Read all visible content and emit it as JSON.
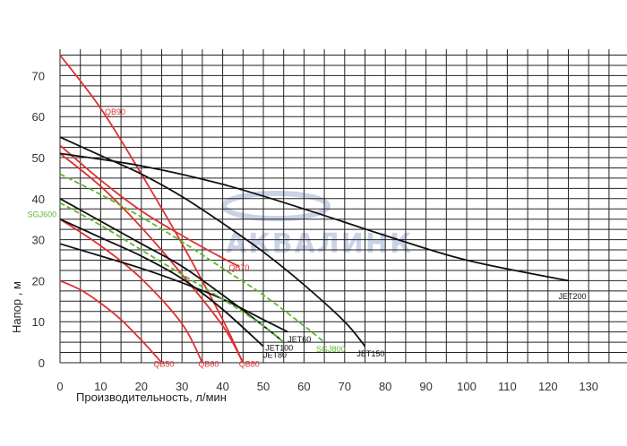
{
  "chart_data": {
    "type": "line",
    "title": "",
    "xlabel": "Производительность, л/мин",
    "ylabel": "Напор , м",
    "xlim": [
      0,
      140
    ],
    "ylim": [
      0,
      78
    ],
    "x_ticks": [
      0,
      10,
      20,
      30,
      40,
      50,
      60,
      70,
      80,
      90,
      100,
      110,
      120,
      130
    ],
    "y_ticks": [
      0,
      10,
      20,
      30,
      40,
      50,
      60,
      70
    ],
    "grid": true,
    "watermark": "АКВАЛИНК",
    "colors": {
      "black": "#111111",
      "red": "#e03030",
      "green": "#5cb82a",
      "grid": "#222222"
    },
    "series": [
      {
        "name": "QB50",
        "color": "red",
        "x": [
          0,
          5,
          10,
          15,
          20,
          25
        ],
        "y": [
          20,
          17.8,
          14.5,
          10.5,
          5.5,
          0
        ]
      },
      {
        "name": "QB60",
        "color": "red",
        "x": [
          0,
          10,
          20,
          30,
          35
        ],
        "y": [
          35,
          28.5,
          20.5,
          9.5,
          0
        ]
      },
      {
        "name": "QB70",
        "color": "red",
        "x": [
          0,
          10,
          20,
          30,
          40,
          44
        ],
        "y": [
          53,
          44.5,
          37,
          31,
          25.5,
          23.5
        ]
      },
      {
        "name": "QB80",
        "color": "red",
        "x": [
          0,
          10,
          20,
          30,
          40,
          45
        ],
        "y": [
          51,
          43,
          33,
          21.5,
          9,
          0
        ]
      },
      {
        "name": "QB90",
        "color": "red",
        "x": [
          0,
          10,
          20,
          30,
          40,
          45
        ],
        "y": [
          75,
          62,
          46,
          29,
          10.5,
          0
        ]
      },
      {
        "name": "JET80",
        "color": "black",
        "x": [
          0,
          10,
          20,
          30,
          40,
          50
        ],
        "y": [
          35,
          30.5,
          26,
          20.5,
          13,
          4
        ]
      },
      {
        "name": "JET100",
        "color": "black",
        "x": [
          0,
          10,
          20,
          30,
          40,
          50,
          55
        ],
        "y": [
          40,
          34.5,
          29,
          23.5,
          16.5,
          9,
          5
        ]
      },
      {
        "name": "JET60",
        "color": "black",
        "x": [
          0,
          10,
          20,
          30,
          40,
          50,
          56
        ],
        "y": [
          29,
          26,
          23,
          19.5,
          15.5,
          10.5,
          7.5
        ]
      },
      {
        "name": "JET150",
        "color": "black",
        "x": [
          0,
          10,
          20,
          30,
          40,
          50,
          60,
          70,
          75
        ],
        "y": [
          55,
          50.5,
          46,
          40.5,
          34,
          27,
          19,
          10,
          4
        ]
      },
      {
        "name": "JET200",
        "color": "black",
        "x": [
          0,
          20,
          40,
          60,
          80,
          100,
          125
        ],
        "y": [
          51,
          48,
          43.5,
          37.5,
          31,
          25,
          20
        ]
      },
      {
        "name": "SGJ600",
        "color": "green",
        "x": [
          0,
          10,
          20,
          30,
          40,
          50,
          55
        ],
        "y": [
          39,
          33.5,
          27.5,
          21.5,
          15.5,
          9,
          5
        ]
      },
      {
        "name": "SGJ800",
        "color": "green",
        "x": [
          0,
          10,
          20,
          30,
          40,
          50,
          60,
          65
        ],
        "y": [
          46,
          41,
          35.5,
          29.5,
          23,
          16.5,
          9,
          5
        ]
      }
    ]
  }
}
